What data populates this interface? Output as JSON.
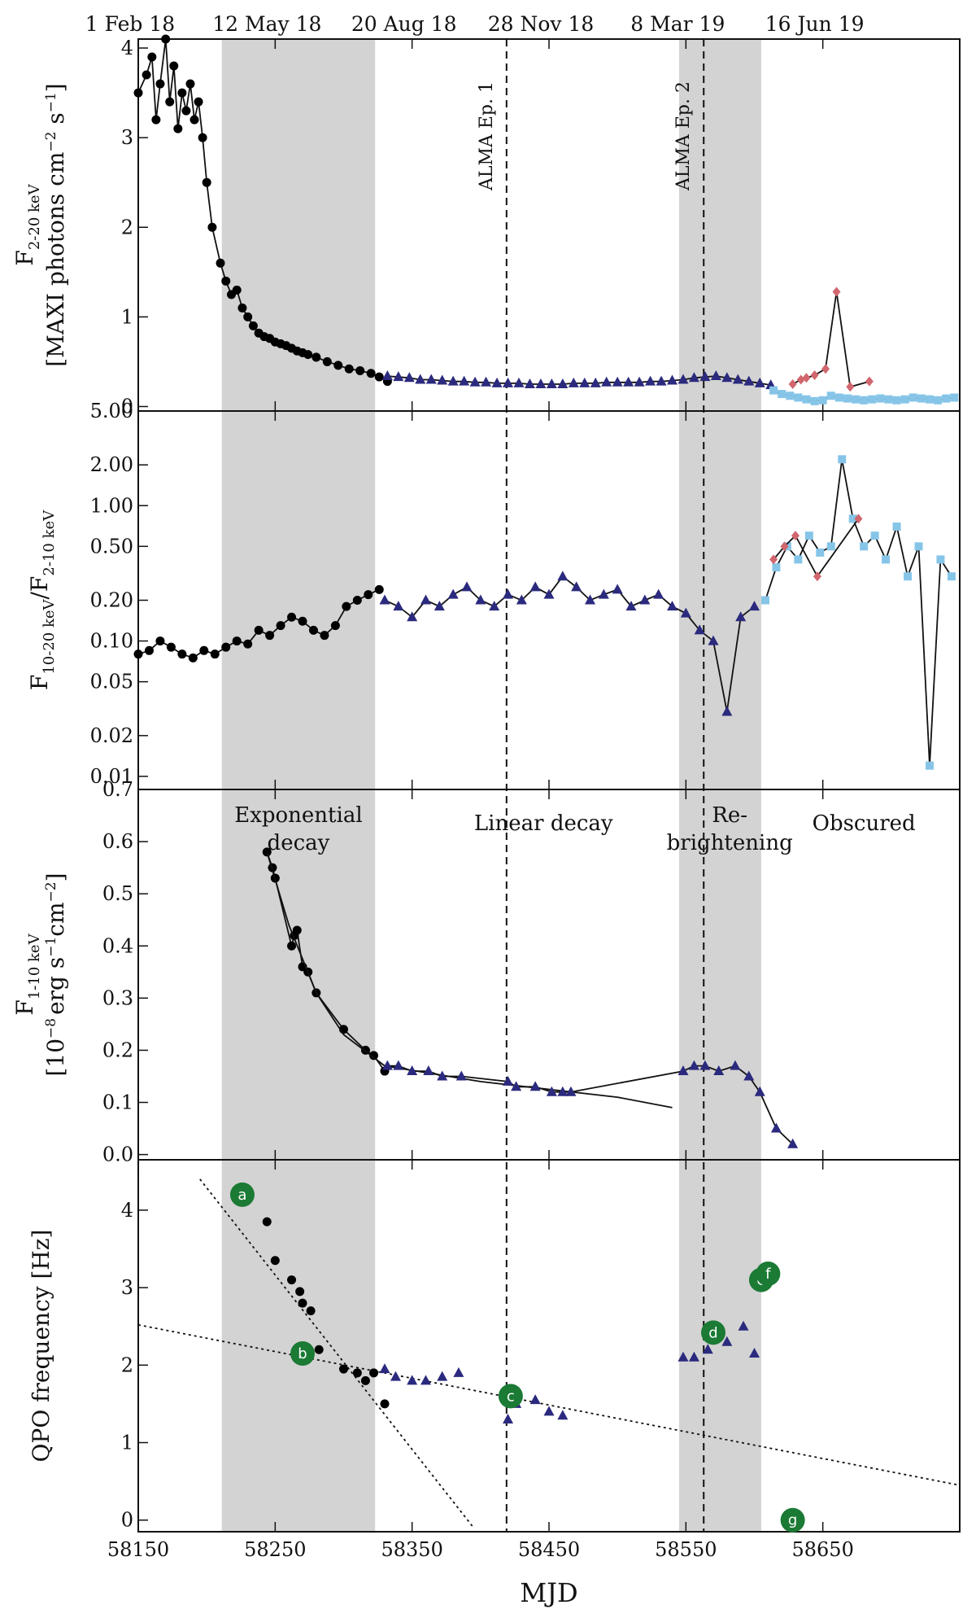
{
  "figure": {
    "x_label": "MJD",
    "x_ticks": [
      58150,
      58250,
      58350,
      58450,
      58550,
      58650
    ],
    "top_dates": [
      "1 Feb 18",
      "12 May 18",
      "20 Aug 18",
      "28 Nov 18",
      "8 Mar 19",
      "16 Jun 19"
    ],
    "top_date_mjd": [
      58150,
      58250,
      58350,
      58450,
      58550,
      58650
    ],
    "x_range": [
      58150,
      58750
    ],
    "shaded_mjd": [
      [
        58211,
        58323
      ],
      [
        58545,
        58605
      ]
    ],
    "alma_lines": [
      {
        "label": "ALMA Ep. 1",
        "mjd": 58419
      },
      {
        "label": "ALMA Ep. 2",
        "mjd": 58563
      }
    ],
    "colors": {
      "maxi": "#000000",
      "triangle": "#2b2a7e",
      "square": "#86c5e8",
      "diamond": "#d1666e",
      "shade": "#d3d3d3",
      "marker_green": "#1b7a34"
    }
  },
  "chart_data": [
    {
      "type": "line",
      "panel": "flux_2_20",
      "ylabel_main": "F",
      "ylabel_sub": "2-20 keV",
      "ylabel_line2": "[MAXI photons cm",
      "ylabel_line2_tail": " s",
      "ylim": [
        -0.05,
        4.1
      ],
      "yticks": [
        0,
        1,
        2,
        3,
        4
      ],
      "series": [
        {
          "name": "black",
          "marker": "circle",
          "x": [
            58150,
            58156,
            58160,
            58163,
            58166,
            58170,
            58173,
            58176,
            58179,
            58182,
            58185,
            58188,
            58191,
            58194,
            58197,
            58200,
            58204,
            58210,
            58214,
            58218,
            58222,
            58226,
            58230,
            58234,
            58238,
            58242,
            58246,
            58250,
            58254,
            58258,
            58262,
            58266,
            58270,
            58274,
            58280,
            58288,
            58296,
            58304,
            58312,
            58320,
            58326,
            58332
          ],
          "y": [
            3.5,
            3.7,
            3.9,
            3.2,
            3.6,
            4.1,
            3.4,
            3.8,
            3.1,
            3.5,
            3.3,
            3.6,
            3.2,
            3.4,
            3.0,
            2.5,
            2.0,
            1.6,
            1.4,
            1.25,
            1.3,
            1.1,
            1.0,
            0.9,
            0.82,
            0.78,
            0.76,
            0.72,
            0.7,
            0.68,
            0.65,
            0.62,
            0.6,
            0.58,
            0.55,
            0.5,
            0.46,
            0.42,
            0.4,
            0.37,
            0.33,
            0.28
          ]
        },
        {
          "name": "triangles",
          "marker": "triangle",
          "x": [
            58332,
            58340,
            58348,
            58356,
            58364,
            58372,
            58380,
            58388,
            58396,
            58404,
            58412,
            58420,
            58428,
            58436,
            58444,
            58452,
            58460,
            58468,
            58476,
            58484,
            58492,
            58500,
            58508,
            58516,
            58524,
            58532,
            58540,
            58548,
            58556,
            58564,
            58572,
            58580,
            58588,
            58596,
            58604,
            58612
          ],
          "y": [
            0.34,
            0.33,
            0.32,
            0.3,
            0.3,
            0.29,
            0.28,
            0.28,
            0.27,
            0.27,
            0.26,
            0.26,
            0.26,
            0.25,
            0.25,
            0.25,
            0.25,
            0.26,
            0.26,
            0.26,
            0.27,
            0.27,
            0.27,
            0.27,
            0.28,
            0.28,
            0.29,
            0.3,
            0.32,
            0.33,
            0.34,
            0.32,
            0.3,
            0.28,
            0.26,
            0.24
          ]
        },
        {
          "name": "squares",
          "marker": "square",
          "x": [
            58614,
            58620,
            58626,
            58632,
            58638,
            58644,
            58650,
            58656,
            58662,
            58668,
            58674,
            58680,
            58686,
            58692,
            58698,
            58704,
            58710,
            58716,
            58722,
            58728,
            58734,
            58740,
            58746
          ],
          "y": [
            0.18,
            0.14,
            0.12,
            0.1,
            0.08,
            0.06,
            0.07,
            0.12,
            0.1,
            0.09,
            0.08,
            0.07,
            0.08,
            0.09,
            0.08,
            0.07,
            0.08,
            0.1,
            0.09,
            0.08,
            0.07,
            0.09,
            0.1
          ]
        },
        {
          "name": "diamonds",
          "marker": "diamond",
          "x": [
            58628,
            58634,
            58638,
            58644,
            58652,
            58660,
            58670,
            58684
          ],
          "y": [
            0.25,
            0.3,
            0.32,
            0.35,
            0.42,
            1.28,
            0.22,
            0.28
          ]
        }
      ]
    },
    {
      "type": "line",
      "panel": "hardness",
      "ylabel_main": "F",
      "ylabel_sub": "10-20 keV",
      "ylabel_mid": "/F",
      "ylabel_sub2": "2-10 keV",
      "scale": "log",
      "ylim": [
        0.008,
        5.0
      ],
      "yticks": [
        0.01,
        0.02,
        0.05,
        0.1,
        0.2,
        0.5,
        1.0,
        2.0,
        5.0
      ],
      "ytick_labels": [
        "0.01",
        "0.02",
        "0.05",
        "0.10",
        "0.20",
        "0.50",
        "1.00",
        "2.00",
        "5.00"
      ],
      "series": [
        {
          "name": "black",
          "marker": "circle",
          "x": [
            58150,
            58158,
            58166,
            58174,
            58182,
            58190,
            58198,
            58206,
            58214,
            58222,
            58230,
            58238,
            58246,
            58254,
            58262,
            58270,
            58278,
            58286,
            58294,
            58302,
            58310,
            58318,
            58326
          ],
          "y": [
            0.08,
            0.085,
            0.1,
            0.09,
            0.08,
            0.075,
            0.085,
            0.08,
            0.09,
            0.1,
            0.095,
            0.12,
            0.11,
            0.13,
            0.15,
            0.14,
            0.12,
            0.11,
            0.13,
            0.18,
            0.2,
            0.22,
            0.24
          ]
        },
        {
          "name": "triangles",
          "marker": "triangle",
          "x": [
            58330,
            58340,
            58350,
            58360,
            58370,
            58380,
            58390,
            58400,
            58410,
            58420,
            58430,
            58440,
            58450,
            58460,
            58470,
            58480,
            58490,
            58500,
            58510,
            58520,
            58530,
            58540,
            58550,
            58560,
            58570,
            58580,
            58590,
            58600
          ],
          "y": [
            0.2,
            0.18,
            0.15,
            0.2,
            0.18,
            0.22,
            0.25,
            0.2,
            0.18,
            0.22,
            0.2,
            0.25,
            0.22,
            0.3,
            0.25,
            0.2,
            0.22,
            0.24,
            0.18,
            0.2,
            0.22,
            0.18,
            0.16,
            0.12,
            0.1,
            0.03,
            0.15,
            0.18
          ]
        },
        {
          "name": "squares",
          "marker": "square",
          "x": [
            58608,
            58616,
            58624,
            58632,
            58640,
            58648,
            58656,
            58664,
            58672,
            58680,
            58688,
            58696,
            58704,
            58712,
            58720,
            58728,
            58736,
            58744
          ],
          "y": [
            0.2,
            0.35,
            0.5,
            0.4,
            0.6,
            0.45,
            0.5,
            2.2,
            0.8,
            0.5,
            0.6,
            0.4,
            0.7,
            0.3,
            0.5,
            0.012,
            0.4,
            0.3
          ]
        },
        {
          "name": "diamonds",
          "marker": "diamond",
          "x": [
            58614,
            58622,
            58630,
            58646,
            58676
          ],
          "y": [
            0.4,
            0.5,
            0.6,
            0.3,
            0.8
          ]
        }
      ]
    },
    {
      "type": "line",
      "panel": "flux_1_10",
      "ylabel_main": "F",
      "ylabel_sub": "1-10 keV",
      "ylabel_line2": "[10",
      "ylabel_line2_tail": "erg s",
      "ylim": [
        -0.01,
        0.7
      ],
      "yticks": [
        0.0,
        0.1,
        0.2,
        0.3,
        0.4,
        0.5,
        0.6,
        0.7
      ],
      "ytick_labels": [
        "0.0",
        "0.1",
        "0.2",
        "0.3",
        "0.4",
        "0.5",
        "0.6",
        "0.7"
      ],
      "phases": [
        "Exponential",
        "decay",
        "Linear decay",
        "Re-",
        "brightening",
        "Obscured"
      ],
      "series": [
        {
          "name": "black",
          "marker": "circle",
          "x": [
            58244,
            58248,
            58250,
            58262,
            58264,
            58266,
            58270,
            58274,
            58280,
            58300,
            58316,
            58322,
            58330
          ],
          "y": [
            0.58,
            0.55,
            0.53,
            0.4,
            0.42,
            0.43,
            0.36,
            0.35,
            0.31,
            0.24,
            0.2,
            0.19,
            0.16
          ]
        },
        {
          "name": "model",
          "marker": "none",
          "x": [
            58244,
            58260,
            58280,
            58300,
            58330,
            58400,
            58500,
            58540
          ],
          "y": [
            0.58,
            0.44,
            0.31,
            0.23,
            0.17,
            0.14,
            0.11,
            0.09
          ]
        },
        {
          "name": "triangles",
          "marker": "triangle",
          "x": [
            58332,
            58340,
            58350,
            58362,
            58372,
            58386,
            58420,
            58426,
            58440,
            58452,
            58460,
            58466,
            58548,
            58556,
            58564,
            58574,
            58586,
            58596,
            58604,
            58616,
            58628
          ],
          "y": [
            0.17,
            0.17,
            0.16,
            0.16,
            0.15,
            0.15,
            0.14,
            0.13,
            0.13,
            0.12,
            0.12,
            0.12,
            0.16,
            0.17,
            0.17,
            0.16,
            0.17,
            0.15,
            0.12,
            0.05,
            0.02
          ]
        }
      ]
    },
    {
      "type": "scatter",
      "panel": "qpo",
      "ylabel": "QPO frequency [Hz]",
      "ylim": [
        -0.15,
        4.65
      ],
      "yticks": [
        0,
        1,
        2,
        3,
        4
      ],
      "series": [
        {
          "name": "black",
          "marker": "circle",
          "x": [
            58244,
            58250,
            58262,
            58268,
            58270,
            58276,
            58282,
            58300,
            58310,
            58316,
            58322,
            58330
          ],
          "y": [
            3.85,
            3.35,
            3.1,
            2.95,
            2.8,
            2.7,
            2.2,
            1.95,
            1.9,
            1.8,
            1.9,
            1.5
          ]
        },
        {
          "name": "triangles",
          "marker": "triangle",
          "x": [
            58330,
            58338,
            58350,
            58360,
            58372,
            58384,
            58420,
            58426,
            58440,
            58450,
            58460,
            58548,
            58556,
            58566,
            58580,
            58592,
            58600
          ],
          "y": [
            1.95,
            1.85,
            1.8,
            1.8,
            1.85,
            1.9,
            1.3,
            1.5,
            1.55,
            1.4,
            1.35,
            2.1,
            2.1,
            2.2,
            2.3,
            2.5,
            2.15
          ]
        },
        {
          "name": "labels",
          "marker": "letter",
          "labels": [
            "a",
            "b",
            "c",
            "d",
            "e",
            "f",
            "g"
          ],
          "x": [
            58226,
            58270,
            58422,
            58570,
            58605,
            58610,
            58628
          ],
          "y": [
            4.2,
            2.15,
            1.6,
            2.42,
            3.1,
            3.18,
            0.0
          ]
        }
      ],
      "fit_lines": [
        {
          "name": "steep",
          "x": [
            58195,
            58395
          ],
          "y": [
            4.4,
            -0.1
          ]
        },
        {
          "name": "shallow",
          "x": [
            58150,
            58750
          ],
          "y": [
            2.52,
            0.45
          ]
        }
      ]
    }
  ]
}
